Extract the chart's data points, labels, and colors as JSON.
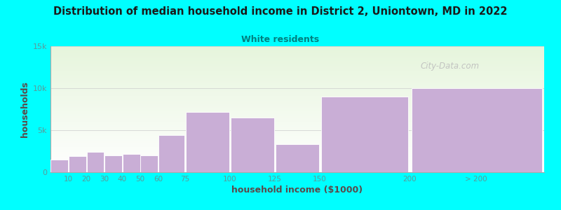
{
  "title": "Distribution of median household income in District 2, Uniontown, MD in 2022",
  "subtitle": "White residents",
  "xlabel": "household income ($1000)",
  "ylabel": "households",
  "background_color": "#00FFFF",
  "bar_color": "#c9aed6",
  "bar_edge_color": "#ffffff",
  "title_color": "#1a1a1a",
  "subtitle_color": "#008080",
  "tick_color": "#5a9a9a",
  "label_color": "#5a4a4a",
  "watermark": "City-Data.com",
  "yticks": [
    0,
    5000,
    10000,
    15000
  ],
  "ytick_labels": [
    "0",
    "5k",
    "10k",
    "15k"
  ],
  "ylim": [
    0,
    15000
  ],
  "bar_lefts": [
    0,
    10,
    20,
    30,
    40,
    50,
    60,
    75,
    100,
    125,
    150,
    200
  ],
  "bar_widths": [
    10,
    10,
    10,
    10,
    10,
    10,
    15,
    25,
    25,
    25,
    50,
    75
  ],
  "bar_heights": [
    1500,
    1900,
    2400,
    2000,
    2200,
    2000,
    4400,
    7200,
    6500,
    3300,
    9000,
    10000
  ],
  "xtick_positions": [
    10,
    20,
    30,
    40,
    50,
    60,
    75,
    100,
    125,
    150,
    200,
    237
  ],
  "xtick_labels": [
    "10",
    "20",
    "30",
    "40",
    "50",
    "60",
    "75",
    "100",
    "125",
    "150",
    "200",
    "> 200"
  ],
  "xlim": [
    0,
    275
  ]
}
